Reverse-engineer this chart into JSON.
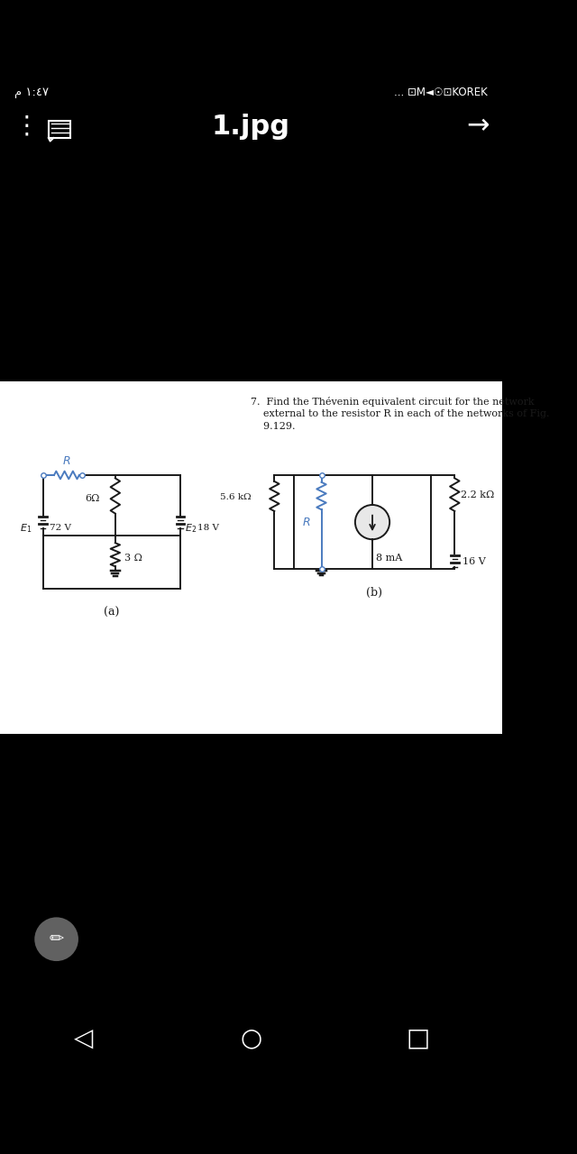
{
  "bg_color": "#000000",
  "content_bg": "#ffffff",
  "blue_color": "#4B7BBF",
  "black_color": "#1a1a1a",
  "text_color": "#1a1a1a",
  "status_left": "م ١:٤٧",
  "status_right": "... ⬜ M ◄ ☉ ⬜KOREK",
  "title_text": "1.jpg",
  "problem_line1": "7.  Find the Thévenin equivalent circuit for the network",
  "problem_line2": "    external to the resistor R in each of the networks of Fig.",
  "problem_line3": "    9.129.",
  "label_a": "(a)",
  "label_b": "(b)",
  "E1_label": "E_1",
  "E1_value": "72 V",
  "R6_label": "6Ω",
  "E2_label": "E_2",
  "E2_value": "18 V",
  "R3_label": "3 Ω",
  "R_label": "R",
  "R56_label": "5.6 kΩ",
  "R22_label": "2.2 kΩ",
  "I_label": "8 mA",
  "E16_label": "16 V"
}
